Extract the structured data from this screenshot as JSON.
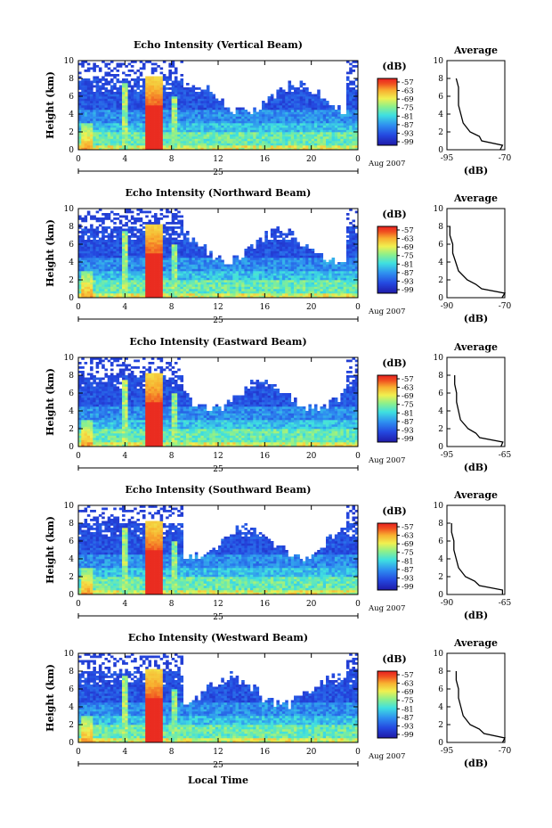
{
  "chart_data": [
    {
      "type": "heatmap",
      "title": "Echo Intensity (Vertical Beam)",
      "ylabel": "Height (km)",
      "xticks": [
        "0",
        "4",
        "8",
        "12",
        "16",
        "20",
        "0"
      ],
      "yticks": [
        "0",
        "2",
        "4",
        "6",
        "8",
        "10"
      ],
      "ylim": [
        0,
        10
      ],
      "xlim": [
        0,
        24
      ],
      "day": "25",
      "date_label": "Aug 2007",
      "colorbar": {
        "title": "(dB)",
        "ticks": [
          "-57",
          "-63",
          "-69",
          "-75",
          "-81",
          "-87",
          "-93",
          "-99"
        ]
      },
      "profile": {
        "title": "Average",
        "xlabel": "(dB)",
        "xticks": [
          "-95",
          "-70"
        ],
        "yticks": [
          "0",
          "2",
          "4",
          "6",
          "8",
          "10"
        ],
        "x": [
          -72,
          -71,
          -80,
          -81,
          -85,
          -88,
          -89,
          -90,
          -90,
          -90,
          -91
        ],
        "y": [
          0,
          0.5,
          1,
          1.5,
          2,
          3,
          4,
          5,
          6,
          7,
          8
        ]
      }
    },
    {
      "type": "heatmap",
      "title": "Echo Intensity (Northward Beam)",
      "ylabel": "Height (km)",
      "xticks": [
        "0",
        "4",
        "8",
        "12",
        "16",
        "20",
        "0"
      ],
      "yticks": [
        "0",
        "2",
        "4",
        "6",
        "8",
        "10"
      ],
      "ylim": [
        0,
        10
      ],
      "xlim": [
        0,
        24
      ],
      "day": "25",
      "date_label": "Aug 2007",
      "colorbar": {
        "title": "(dB)",
        "ticks": [
          "-57",
          "-63",
          "-69",
          "-75",
          "-81",
          "-87",
          "-93",
          "-99"
        ]
      },
      "profile": {
        "title": "Average",
        "xlabel": "(dB)",
        "xticks": [
          "-90",
          "-70"
        ],
        "yticks": [
          "0",
          "2",
          "4",
          "6",
          "8",
          "10"
        ],
        "x": [
          -71,
          -70,
          -78,
          -80,
          -83,
          -86,
          -87,
          -88,
          -88,
          -89,
          -89
        ],
        "y": [
          0,
          0.5,
          1,
          1.5,
          2,
          3,
          4,
          5,
          6,
          7,
          8
        ]
      }
    },
    {
      "type": "heatmap",
      "title": "Echo Intensity (Eastward Beam)",
      "ylabel": "Height (km)",
      "xticks": [
        "0",
        "4",
        "8",
        "12",
        "16",
        "20",
        "0"
      ],
      "yticks": [
        "0",
        "2",
        "4",
        "6",
        "8",
        "10"
      ],
      "ylim": [
        0,
        10
      ],
      "xlim": [
        0,
        24
      ],
      "day": "25",
      "date_label": "Aug 2007",
      "colorbar": {
        "title": "(dB)",
        "ticks": [
          "-57",
          "-63",
          "-69",
          "-75",
          "-81",
          "-87",
          "-93",
          "-99"
        ]
      },
      "profile": {
        "title": "Average",
        "xlabel": "(dB)",
        "xticks": [
          "-95",
          "-65"
        ],
        "yticks": [
          "0",
          "2",
          "4",
          "6",
          "8",
          "10"
        ],
        "x": [
          -67,
          -66,
          -78,
          -80,
          -84,
          -88,
          -89,
          -90,
          -90,
          -91,
          -91
        ],
        "y": [
          0,
          0.5,
          1,
          1.5,
          2,
          3,
          4,
          5,
          6,
          7,
          8
        ]
      }
    },
    {
      "type": "heatmap",
      "title": "Echo Intensity (Southward Beam)",
      "ylabel": "Height (km)",
      "xticks": [
        "0",
        "4",
        "8",
        "12",
        "16",
        "20",
        "0"
      ],
      "yticks": [
        "0",
        "2",
        "4",
        "6",
        "8",
        "10"
      ],
      "ylim": [
        0,
        10
      ],
      "xlim": [
        0,
        24
      ],
      "day": "25",
      "date_label": "Aug 2007",
      "colorbar": {
        "title": "(dB)",
        "ticks": [
          "-57",
          "-63",
          "-69",
          "-75",
          "-81",
          "-87",
          "-93",
          "-99"
        ]
      },
      "profile": {
        "title": "Average",
        "xlabel": "(dB)",
        "xticks": [
          "-90",
          "-65"
        ],
        "yticks": [
          "0",
          "2",
          "4",
          "6",
          "8",
          "10"
        ],
        "x": [
          -66,
          -66,
          -76,
          -78,
          -82,
          -85,
          -86,
          -87,
          -87,
          -88,
          -88
        ],
        "y": [
          0,
          0.5,
          1,
          1.5,
          2,
          3,
          4,
          5,
          6,
          7,
          8
        ]
      }
    },
    {
      "type": "heatmap",
      "title": "Echo Intensity (Westward Beam)",
      "ylabel": "Height (km)",
      "xticks": [
        "0",
        "4",
        "8",
        "12",
        "16",
        "20",
        "0"
      ],
      "yticks": [
        "0",
        "2",
        "4",
        "6",
        "8",
        "10"
      ],
      "ylim": [
        0,
        10
      ],
      "xlim": [
        0,
        24
      ],
      "day": "25",
      "date_label": "Aug 2007",
      "colorbar": {
        "title": "(dB)",
        "ticks": [
          "-57",
          "-63",
          "-69",
          "-75",
          "-81",
          "-87",
          "-93",
          "-99"
        ]
      },
      "profile": {
        "title": "Average",
        "xlabel": "(dB)",
        "xticks": [
          "-95",
          "-70"
        ],
        "yticks": [
          "0",
          "2",
          "4",
          "6",
          "8",
          "10"
        ],
        "x": [
          -71,
          -70,
          -79,
          -81,
          -85,
          -88,
          -89,
          -90,
          -90,
          -91,
          -91
        ],
        "y": [
          0,
          0.5,
          1,
          1.5,
          2,
          3,
          4,
          5,
          6,
          7,
          8
        ]
      }
    }
  ],
  "xlabel": "Local Time"
}
